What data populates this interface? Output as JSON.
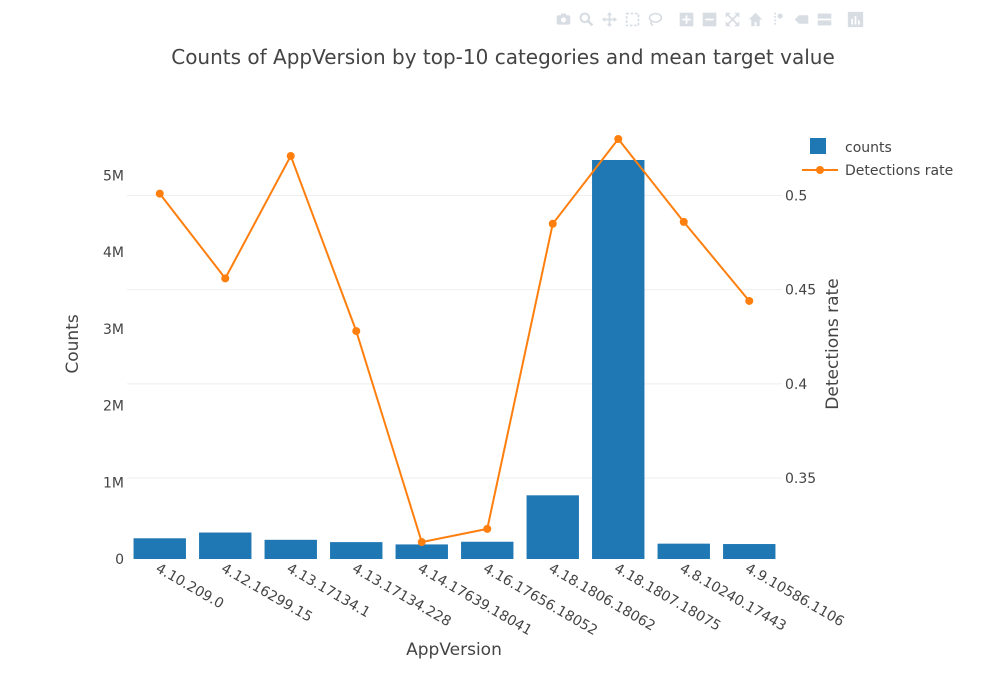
{
  "modebar": {
    "buttons": [
      {
        "name": "camera-icon"
      },
      {
        "name": "zoom-icon"
      },
      {
        "name": "pan-icon"
      },
      {
        "name": "box-select-icon"
      },
      {
        "name": "lasso-select-icon"
      },
      {
        "name": "zoom-in-icon"
      },
      {
        "name": "zoom-out-icon"
      },
      {
        "name": "autoscale-icon"
      },
      {
        "name": "home-icon"
      },
      {
        "name": "spike-lines-icon"
      },
      {
        "name": "hover-closest-icon"
      },
      {
        "name": "hover-compare-icon"
      },
      {
        "name": "plotly-logo-icon"
      }
    ]
  },
  "chart_data": {
    "type": "bar",
    "title": "Counts of AppVersion by top-10 categories and mean target value",
    "xlabel": "AppVersion",
    "ylabel": "Counts",
    "y2label": "Detections rate",
    "categories": [
      "4.10.209.0",
      "4.12.16299.15",
      "4.13.17134.1",
      "4.13.17134.228",
      "4.14.17639.18041",
      "4.16.17656.18052",
      "4.18.1806.18062",
      "4.18.1807.18075",
      "4.8.10240.17443",
      "4.9.10586.1106"
    ],
    "series": [
      {
        "name": "counts",
        "type": "bar",
        "axis": "y",
        "color": "#1f77b4",
        "values": [
          270000,
          345000,
          250000,
          220000,
          190000,
          225000,
          830000,
          5200000,
          200000,
          195000
        ]
      },
      {
        "name": "Detections rate",
        "type": "line",
        "axis": "y2",
        "color": "#ff7f0e",
        "values": [
          0.501,
          0.456,
          0.521,
          0.428,
          0.316,
          0.323,
          0.485,
          0.53,
          0.486,
          0.444
        ]
      }
    ],
    "ylim": [
      0,
      5473684
    ],
    "y2lim": [
      0.307,
      0.53
    ],
    "yticks": [
      {
        "v": 0,
        "label": "0"
      },
      {
        "v": 1000000,
        "label": "1M"
      },
      {
        "v": 2000000,
        "label": "2M"
      },
      {
        "v": 3000000,
        "label": "3M"
      },
      {
        "v": 4000000,
        "label": "4M"
      },
      {
        "v": 5000000,
        "label": "5M"
      }
    ],
    "y2ticks": [
      {
        "v": 0.35,
        "label": "0.35"
      },
      {
        "v": 0.4,
        "label": "0.4"
      },
      {
        "v": 0.45,
        "label": "0.45"
      },
      {
        "v": 0.5,
        "label": "0.5"
      }
    ],
    "grid": true,
    "legend_position": "top-right",
    "colors": {
      "bar": "#1f77b4",
      "line": "#ff7f0e",
      "grid": "#eeeeee",
      "text": "#444444",
      "modebar": "#d8dde3"
    }
  }
}
